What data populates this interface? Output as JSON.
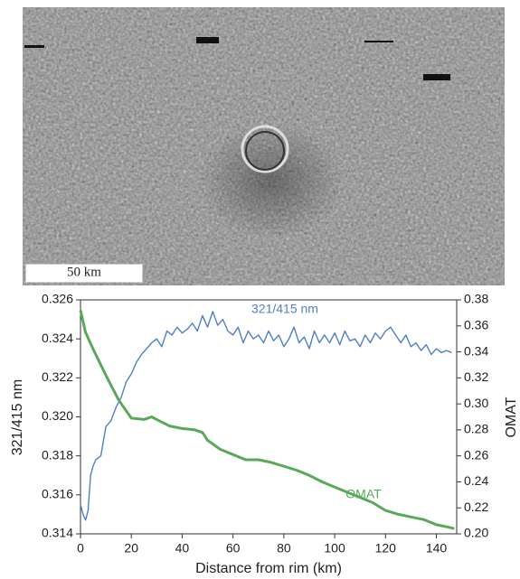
{
  "image_scale_label": "50 km",
  "chart_data": {
    "type": "line",
    "xlabel": "Distance from rim (km)",
    "ylabel": "321/415 nm",
    "y2label": "OMAT",
    "xlim": [
      0,
      148
    ],
    "xticks": [
      0,
      20,
      40,
      60,
      80,
      100,
      120,
      140
    ],
    "ylim": [
      0.314,
      0.326
    ],
    "yticks": [
      0.314,
      0.316,
      0.318,
      {
        "value": 0.32,
        "label": "0.320"
      },
      0.322,
      0.324,
      0.326
    ],
    "y2lim": [
      0.2,
      0.38
    ],
    "y2ticks": [
      {
        "value": 0.2,
        "label": "0.20"
      },
      0.22,
      0.24,
      0.26,
      0.28,
      {
        "value": 0.3,
        "label": "0.30"
      },
      0.32,
      0.34,
      0.36,
      0.38
    ],
    "series": [
      {
        "name": "321/415 nm",
        "color": "#4f7fc6",
        "x": [
          0,
          1,
          2,
          3,
          4,
          5,
          6,
          8,
          10,
          12,
          14,
          16,
          18,
          20,
          22,
          24,
          26,
          28,
          30,
          32,
          34,
          36,
          38,
          40,
          42,
          44,
          46,
          48,
          50,
          52,
          54,
          56,
          58,
          60,
          62,
          64,
          66,
          68,
          70,
          72,
          74,
          76,
          78,
          80,
          82,
          84,
          86,
          88,
          90,
          92,
          94,
          96,
          98,
          100,
          102,
          104,
          106,
          108,
          110,
          112,
          114,
          116,
          118,
          120,
          122,
          124,
          126,
          128,
          130,
          132,
          134,
          136,
          138,
          140,
          142,
          144,
          146
        ],
        "values": [
          0.3155,
          0.315,
          0.3147,
          0.3152,
          0.317,
          0.3175,
          0.3178,
          0.318,
          0.3195,
          0.3198,
          0.3205,
          0.321,
          0.3218,
          0.3222,
          0.3228,
          0.3232,
          0.3235,
          0.3238,
          0.324,
          0.3236,
          0.3244,
          0.3242,
          0.3246,
          0.3243,
          0.3245,
          0.3248,
          0.3244,
          0.3252,
          0.3246,
          0.3254,
          0.3247,
          0.325,
          0.3244,
          0.3242,
          0.3246,
          0.3238,
          0.3244,
          0.324,
          0.3242,
          0.3238,
          0.3244,
          0.3239,
          0.3242,
          0.3236,
          0.324,
          0.3246,
          0.3238,
          0.3241,
          0.3235,
          0.3244,
          0.3238,
          0.3242,
          0.3238,
          0.3243,
          0.3237,
          0.3244,
          0.3239,
          0.324,
          0.3236,
          0.3242,
          0.3238,
          0.3243,
          0.324,
          0.3244,
          0.3246,
          0.3242,
          0.3238,
          0.3242,
          0.3236,
          0.3238,
          0.3234,
          0.3237,
          0.3232,
          0.3235,
          0.3233,
          0.3234,
          0.3233
        ]
      },
      {
        "name": "OMAT",
        "color": "#5aa85a",
        "axis": "y2",
        "x": [
          0,
          2,
          5,
          10,
          15,
          20,
          25,
          28,
          30,
          35,
          40,
          45,
          48,
          50,
          55,
          60,
          65,
          70,
          75,
          80,
          85,
          90,
          95,
          100,
          105,
          110,
          115,
          120,
          125,
          130,
          135,
          140,
          145,
          147
        ],
        "values": [
          0.372,
          0.355,
          0.342,
          0.322,
          0.303,
          0.289,
          0.288,
          0.29,
          0.288,
          0.283,
          0.281,
          0.28,
          0.278,
          0.272,
          0.265,
          0.261,
          0.257,
          0.257,
          0.255,
          0.252,
          0.249,
          0.245,
          0.24,
          0.236,
          0.232,
          0.228,
          0.224,
          0.218,
          0.215,
          0.213,
          0.211,
          0.207,
          0.205,
          0.204
        ]
      }
    ]
  }
}
